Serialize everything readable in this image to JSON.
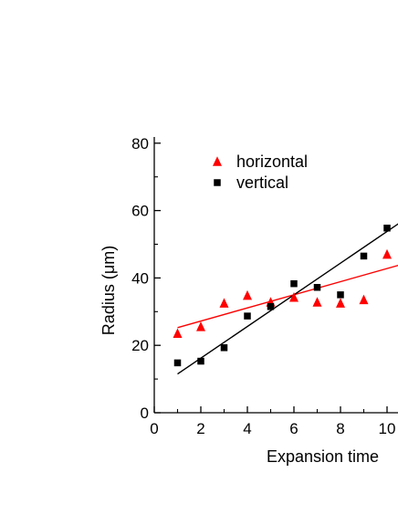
{
  "chart_data": {
    "type": "scatter",
    "xlabel": "Expansion time",
    "ylabel": "Radius (μm)",
    "xlim": [
      0,
      10.5
    ],
    "ylim": [
      0,
      80
    ],
    "xticks": [
      0,
      2,
      4,
      6,
      8,
      10
    ],
    "yticks": [
      0,
      20,
      40,
      60,
      80
    ],
    "legend_position": "top-left",
    "grid": false,
    "series": [
      {
        "name": "horizontal",
        "marker": "triangle",
        "color": "#ff0000",
        "x": [
          1,
          2,
          3,
          4,
          5,
          6,
          7,
          8,
          9,
          10
        ],
        "y": [
          23.5,
          25.5,
          32.5,
          34.8,
          32.8,
          34.2,
          32.8,
          32.5,
          33.5,
          47
        ],
        "fit": {
          "slope": 1.95,
          "intercept": 23.3
        }
      },
      {
        "name": "vertical",
        "marker": "square",
        "color": "#000000",
        "x": [
          1,
          2,
          3,
          4,
          5,
          6,
          7,
          8,
          9,
          10
        ],
        "y": [
          14.8,
          15.3,
          19.3,
          28.7,
          31.5,
          38.3,
          37.2,
          35,
          46.5,
          54.8
        ],
        "fit": {
          "slope": 4.7,
          "intercept": 6.8
        }
      }
    ]
  }
}
